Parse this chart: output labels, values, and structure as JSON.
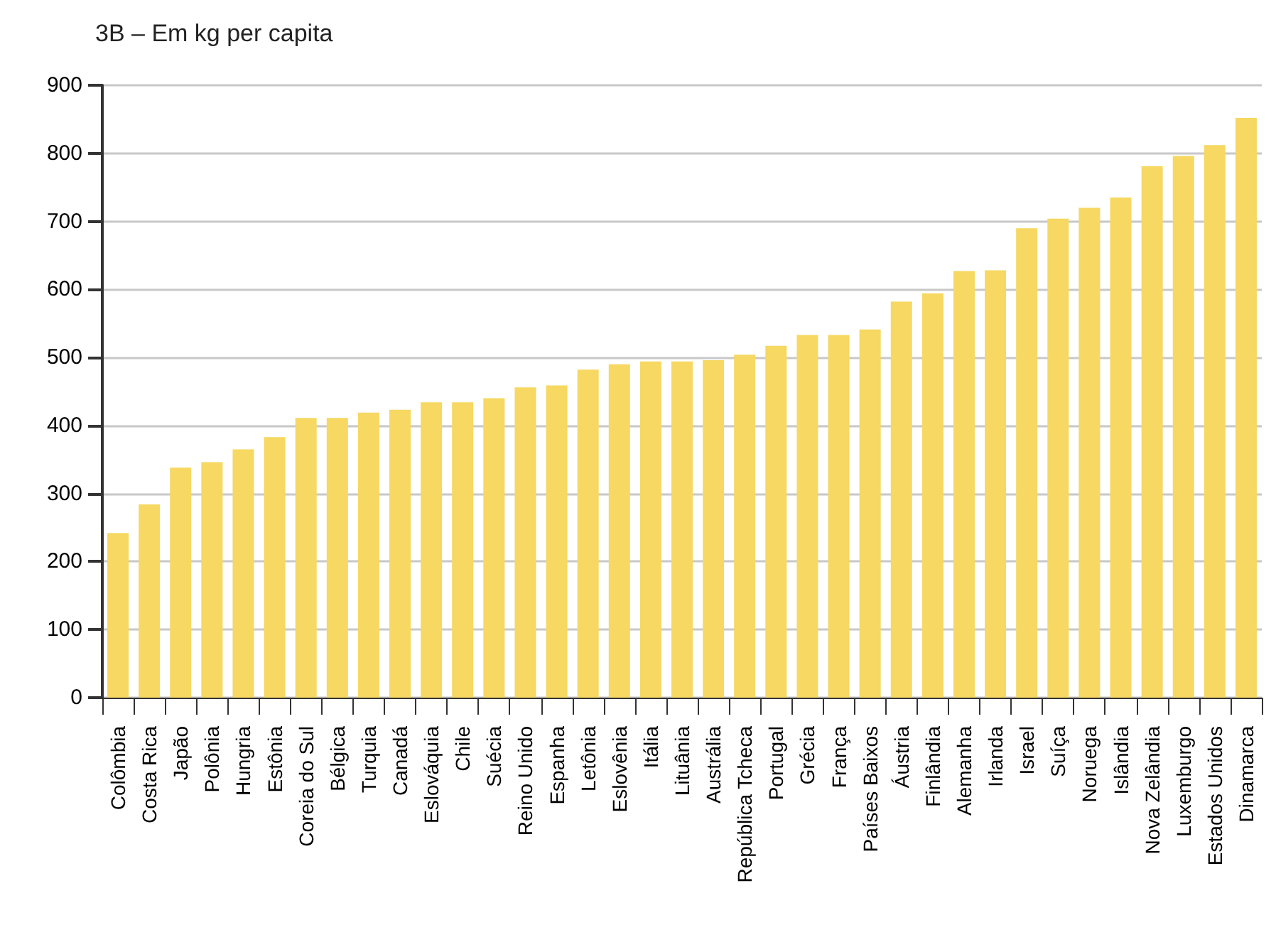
{
  "chart_data": {
    "type": "bar",
    "title": "3B – Em kg per capita",
    "categories": [
      "Colômbia",
      "Costa Rica",
      "Japão",
      "Polônia",
      "Hungria",
      "Estônia",
      "Coreia do Sul",
      "Bélgica",
      "Turquia",
      "Canadá",
      "Eslováquia",
      "Chile",
      "Suécia",
      "Reino Unido",
      "Espanha",
      "Letônia",
      "Eslovênia",
      "Itália",
      "Lituânia",
      "Austrália",
      "República Tcheca",
      "Portugal",
      "Grécia",
      "França",
      "Países Baixos",
      "Áustria",
      "Finlândia",
      "Alemanha",
      "Irlanda",
      "Israel",
      "Suíça",
      "Noruega",
      "Islândia",
      "Nova Zelândia",
      "Luxemburgo",
      "Estados Unidos",
      "Dinamarca"
    ],
    "values": [
      242,
      284,
      338,
      346,
      365,
      383,
      411,
      411,
      419,
      423,
      434,
      434,
      440,
      456,
      459,
      482,
      490,
      494,
      494,
      496,
      504,
      517,
      533,
      533,
      541,
      582,
      594,
      627,
      628,
      690,
      704,
      720,
      735,
      781,
      796,
      812,
      852
    ],
    "color": "#f6d862",
    "ylim": [
      0,
      900
    ],
    "yticks": [
      0,
      100,
      200,
      300,
      400,
      500,
      600,
      700,
      800,
      900
    ],
    "grid": "y"
  }
}
